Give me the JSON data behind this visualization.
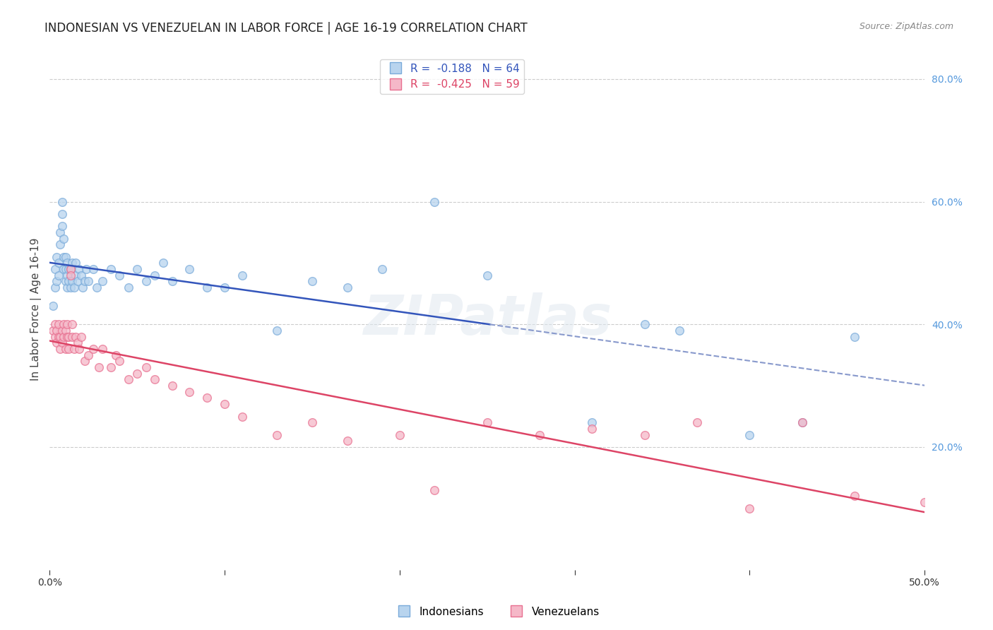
{
  "title": "INDONESIAN VS VENEZUELAN IN LABOR FORCE | AGE 16-19 CORRELATION CHART",
  "source": "Source: ZipAtlas.com",
  "ylabel": "In Labor Force | Age 16-19",
  "xlim": [
    0.0,
    0.5
  ],
  "ylim": [
    0.0,
    0.85
  ],
  "yticks_right": [
    0.2,
    0.4,
    0.6,
    0.8
  ],
  "background_color": "#ffffff",
  "watermark_text": "ZIPatlas",
  "legend_line1": "R =  -0.188   N = 64",
  "legend_line2": "R =  -0.425   N = 59",
  "indonesian_x": [
    0.002,
    0.003,
    0.003,
    0.004,
    0.004,
    0.005,
    0.005,
    0.006,
    0.006,
    0.007,
    0.007,
    0.007,
    0.008,
    0.008,
    0.008,
    0.009,
    0.009,
    0.009,
    0.01,
    0.01,
    0.01,
    0.011,
    0.011,
    0.012,
    0.012,
    0.013,
    0.013,
    0.014,
    0.015,
    0.015,
    0.016,
    0.017,
    0.018,
    0.019,
    0.02,
    0.021,
    0.022,
    0.025,
    0.027,
    0.03,
    0.035,
    0.04,
    0.045,
    0.05,
    0.055,
    0.06,
    0.065,
    0.07,
    0.08,
    0.09,
    0.1,
    0.11,
    0.13,
    0.15,
    0.17,
    0.19,
    0.22,
    0.25,
    0.31,
    0.34,
    0.36,
    0.4,
    0.43,
    0.46
  ],
  "indonesian_y": [
    0.43,
    0.46,
    0.49,
    0.47,
    0.51,
    0.48,
    0.5,
    0.53,
    0.55,
    0.56,
    0.58,
    0.6,
    0.49,
    0.51,
    0.54,
    0.47,
    0.49,
    0.51,
    0.46,
    0.48,
    0.5,
    0.47,
    0.49,
    0.46,
    0.49,
    0.47,
    0.5,
    0.46,
    0.48,
    0.5,
    0.47,
    0.49,
    0.48,
    0.46,
    0.47,
    0.49,
    0.47,
    0.49,
    0.46,
    0.47,
    0.49,
    0.48,
    0.46,
    0.49,
    0.47,
    0.48,
    0.5,
    0.47,
    0.49,
    0.46,
    0.46,
    0.48,
    0.39,
    0.47,
    0.46,
    0.49,
    0.6,
    0.48,
    0.24,
    0.4,
    0.39,
    0.22,
    0.24,
    0.38
  ],
  "venezuelan_x": [
    0.002,
    0.003,
    0.003,
    0.004,
    0.004,
    0.005,
    0.005,
    0.006,
    0.006,
    0.007,
    0.007,
    0.008,
    0.008,
    0.009,
    0.009,
    0.01,
    0.01,
    0.011,
    0.011,
    0.012,
    0.012,
    0.013,
    0.013,
    0.014,
    0.015,
    0.016,
    0.017,
    0.018,
    0.02,
    0.022,
    0.025,
    0.028,
    0.03,
    0.035,
    0.038,
    0.04,
    0.045,
    0.05,
    0.055,
    0.06,
    0.07,
    0.08,
    0.09,
    0.1,
    0.11,
    0.13,
    0.15,
    0.17,
    0.2,
    0.22,
    0.25,
    0.28,
    0.31,
    0.34,
    0.37,
    0.4,
    0.43,
    0.46,
    0.5
  ],
  "venezuelan_y": [
    0.39,
    0.38,
    0.4,
    0.37,
    0.39,
    0.38,
    0.4,
    0.36,
    0.38,
    0.39,
    0.37,
    0.38,
    0.4,
    0.36,
    0.39,
    0.38,
    0.4,
    0.36,
    0.38,
    0.49,
    0.48,
    0.38,
    0.4,
    0.36,
    0.38,
    0.37,
    0.36,
    0.38,
    0.34,
    0.35,
    0.36,
    0.33,
    0.36,
    0.33,
    0.35,
    0.34,
    0.31,
    0.32,
    0.33,
    0.31,
    0.3,
    0.29,
    0.28,
    0.27,
    0.25,
    0.22,
    0.24,
    0.21,
    0.22,
    0.13,
    0.24,
    0.22,
    0.23,
    0.22,
    0.24,
    0.1,
    0.24,
    0.12,
    0.11
  ],
  "indonesian_dot_fill": "#b8d4ee",
  "indonesian_dot_edge": "#7aabda",
  "venezuelan_dot_fill": "#f5b8c8",
  "venezuelan_dot_edge": "#e87090",
  "indo_line_color": "#3355bb",
  "vene_line_color": "#dd4466",
  "dashed_line_color": "#8899cc",
  "dot_size": 70,
  "dot_alpha": 0.75,
  "line_width": 1.8,
  "title_fontsize": 12,
  "source_fontsize": 9,
  "ylabel_fontsize": 11,
  "tick_fontsize": 10,
  "legend_fontsize": 11,
  "right_tick_color": "#5599dd"
}
